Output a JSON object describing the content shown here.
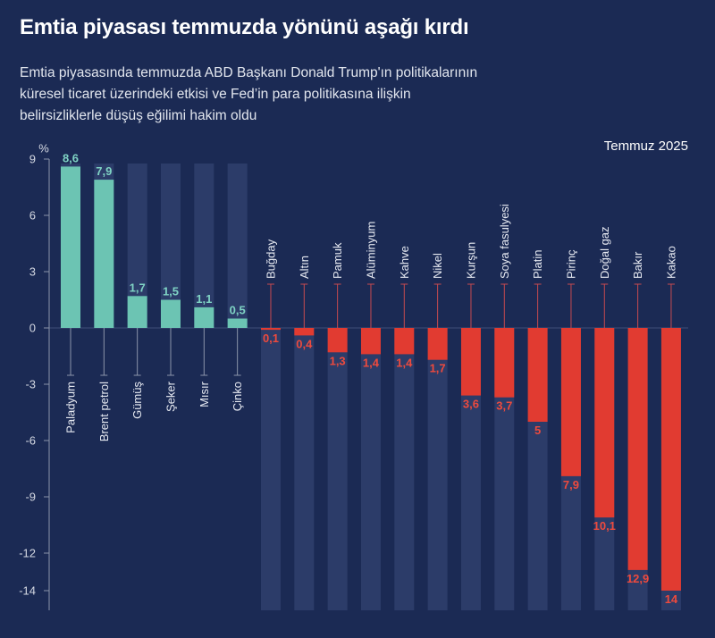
{
  "chart_data": {
    "type": "bar",
    "title": "Emtia piyasası temmuzda yönünü aşağı kırdı",
    "subtitle_lines": [
      "Emtia piyasasında temmuzda ABD Başkanı Donald Trump'ın politikalarının",
      "küresel ticaret üzerindeki etkisi ve Fed’in para politikasına ilişkin",
      "belirsizliklerle düşüş eğilimi hakim oldu"
    ],
    "period": "Temmuz 2025",
    "xlabel": "",
    "ylabel": "%",
    "categories": [
      "Paladyum",
      "Brent petrol",
      "Gümüş",
      "Şeker",
      "Mısır",
      "Çinko",
      "Buğday",
      "Altın",
      "Pamuk",
      "Alüminyum",
      "Kahve",
      "Nikel",
      "Kurşun",
      "Soya fasulyesi",
      "Platin",
      "Pirinç",
      "Doğal gaz",
      "Bakır",
      "Kakao"
    ],
    "values": [
      8.6,
      7.9,
      1.7,
      1.5,
      1.1,
      0.5,
      -0.1,
      -0.4,
      -1.3,
      -1.4,
      -1.4,
      -1.7,
      -3.6,
      -3.7,
      -5,
      -7.9,
      -10.1,
      -12.9,
      -14
    ],
    "data_labels": [
      "8,6",
      "7,9",
      "1,7",
      "1,5",
      "1,1",
      "0,5",
      "0,1",
      "0,4",
      "1,3",
      "1,4",
      "1,4",
      "1,7",
      "3,6",
      "3,7",
      "5",
      "7,9",
      "10,1",
      "12,9",
      "14"
    ],
    "y_ticks": [
      9,
      6,
      3,
      0,
      -3,
      -6,
      -9,
      -12,
      -14
    ],
    "ylim": [
      -14,
      9
    ],
    "grid": false,
    "legend": "none"
  },
  "colors": {
    "background": "#1b2a54",
    "column_bg": "#2c3c69",
    "positive": "#6cc4b3",
    "negative": "#e13b31",
    "positive_label": "#7fd3c4",
    "negative_label": "#ee4a3d",
    "axis": "#8b94aa",
    "zero_line": "#3f4e79",
    "leader_positive": "#8b94aa",
    "leader_negative": "#c64a50",
    "category_text": "#e6e9f1",
    "tick_text": "#d5d9e3"
  }
}
